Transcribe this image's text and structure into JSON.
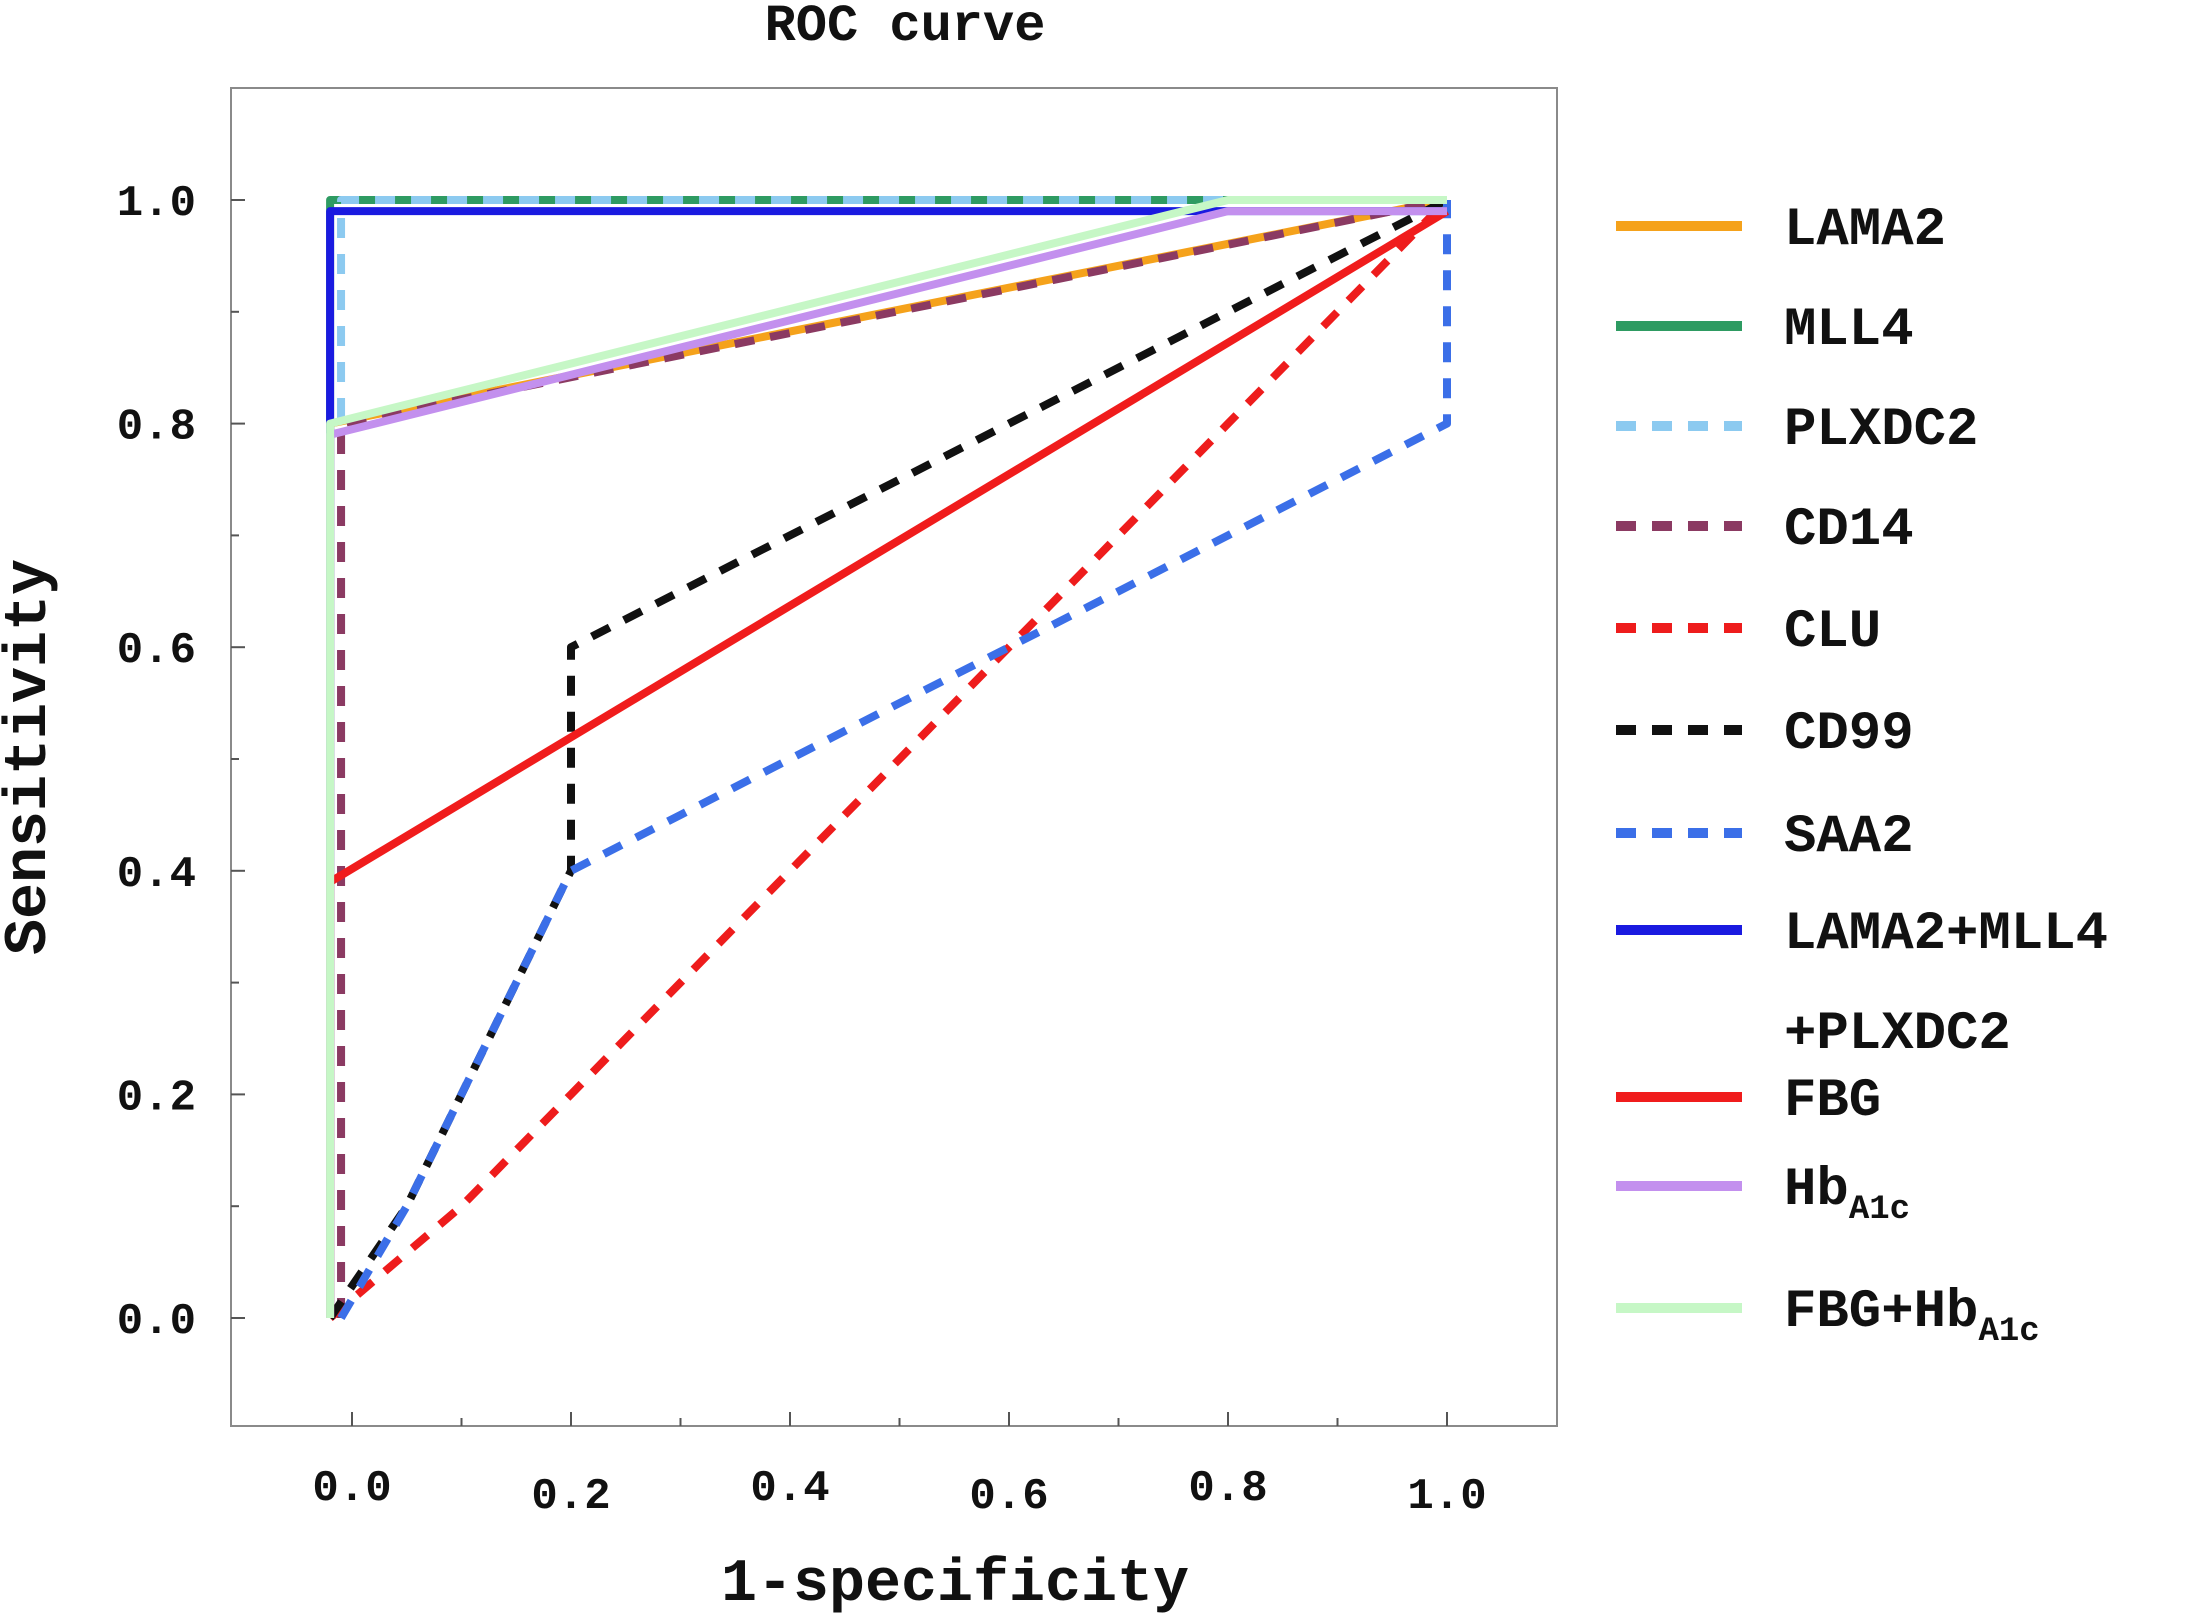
{
  "chart_data": {
    "type": "line",
    "title": "ROC curve",
    "xlabel": "1-specificity",
    "ylabel": "Sensitivity",
    "xlim": [
      -0.11,
      1.1
    ],
    "ylim": [
      -0.1,
      1.1
    ],
    "x_ticks": [
      "0.0",
      "0.2",
      "0.4",
      "0.6",
      "0.8",
      "1.0"
    ],
    "y_ticks": [
      "0.0",
      "0.2",
      "0.4",
      "0.6",
      "0.8",
      "1.0"
    ],
    "grid": false,
    "legend": "right",
    "series": [
      {
        "name": "LAMA2",
        "color": "#f5a21b",
        "dash": "solid",
        "x": [
          -0.02,
          -0.02,
          1.0
        ],
        "y": [
          0.0,
          0.8,
          1.0
        ]
      },
      {
        "name": "MLL4",
        "color": "#2e9b62",
        "dash": "solid",
        "x": [
          -0.02,
          -0.02,
          1.0
        ],
        "y": [
          0.0,
          1.0,
          1.0
        ]
      },
      {
        "name": "PLXDC2",
        "color": "#8ccaf0",
        "dash": "dashed",
        "x": [
          -0.01,
          -0.01,
          1.0
        ],
        "y": [
          0.0,
          1.0,
          1.0
        ]
      },
      {
        "name": "CD14",
        "color": "#8b3a62",
        "dash": "dashed",
        "x": [
          -0.01,
          -0.01,
          0.8,
          1.0
        ],
        "y": [
          0.0,
          0.8,
          0.96,
          1.0
        ]
      },
      {
        "name": "CLU",
        "color": "#ee1c1c",
        "dash": "dashed",
        "x": [
          -0.02,
          0.1,
          0.2,
          0.4,
          0.6,
          0.8,
          1.0
        ],
        "y": [
          0.0,
          0.1,
          0.2,
          0.4,
          0.6,
          0.8,
          1.0
        ]
      },
      {
        "name": "CD99",
        "color": "#111111",
        "dash": "dashed",
        "x": [
          -0.02,
          0.05,
          0.1,
          0.2,
          0.2,
          0.6,
          0.8,
          1.0
        ],
        "y": [
          0.0,
          0.1,
          0.2,
          0.4,
          0.6,
          0.8,
          0.9,
          1.0
        ]
      },
      {
        "name": "SAA2",
        "color": "#3b6fe8",
        "dash": "dashed",
        "x": [
          -0.01,
          0.05,
          0.1,
          0.2,
          0.3,
          0.6,
          0.8,
          1.0,
          1.0,
          1.0
        ],
        "y": [
          0.0,
          0.1,
          0.2,
          0.4,
          0.45,
          0.6,
          0.7,
          0.8,
          0.8,
          1.0
        ]
      },
      {
        "name": "LAMA2+MLL4+PLXDC2",
        "color": "#1a1ae0",
        "dash": "solid",
        "x": [
          -0.02,
          -0.02,
          1.0
        ],
        "y": [
          0.0,
          0.99,
          0.99
        ]
      },
      {
        "name": "FBG",
        "color": "#f01c1c",
        "dash": "solid",
        "x": [
          -0.02,
          -0.02,
          1.0
        ],
        "y": [
          0.0,
          0.39,
          0.99
        ]
      },
      {
        "name": "HbA1c",
        "color": "#c390ee",
        "dash": "solid",
        "x": [
          -0.02,
          -0.02,
          0.8,
          1.0
        ],
        "y": [
          0.0,
          0.79,
          0.99,
          0.99
        ]
      },
      {
        "name": "FBG+HbA1c",
        "color": "#c6f7c6",
        "dash": "solid",
        "x": [
          -0.02,
          -0.02,
          0.8,
          1.0
        ],
        "y": [
          0.0,
          0.8,
          1.0,
          1.0
        ]
      }
    ],
    "legend_entries": [
      {
        "main": "LAMA2",
        "sub": "",
        "extra": ""
      },
      {
        "main": "MLL4",
        "sub": "",
        "extra": ""
      },
      {
        "main": "PLXDC2",
        "sub": "",
        "extra": ""
      },
      {
        "main": "CD14",
        "sub": "",
        "extra": ""
      },
      {
        "main": "CLU",
        "sub": "",
        "extra": ""
      },
      {
        "main": "CD99",
        "sub": "",
        "extra": ""
      },
      {
        "main": "SAA2",
        "sub": "",
        "extra": ""
      },
      {
        "main": "LAMA2+MLL4",
        "sub": "",
        "extra": "+PLXDC2"
      },
      {
        "main": "FBG",
        "sub": "",
        "extra": ""
      },
      {
        "main": "Hb",
        "sub": "A1c",
        "extra": ""
      },
      {
        "main": "FBG+Hb",
        "sub": "A1c",
        "extra": ""
      }
    ]
  }
}
